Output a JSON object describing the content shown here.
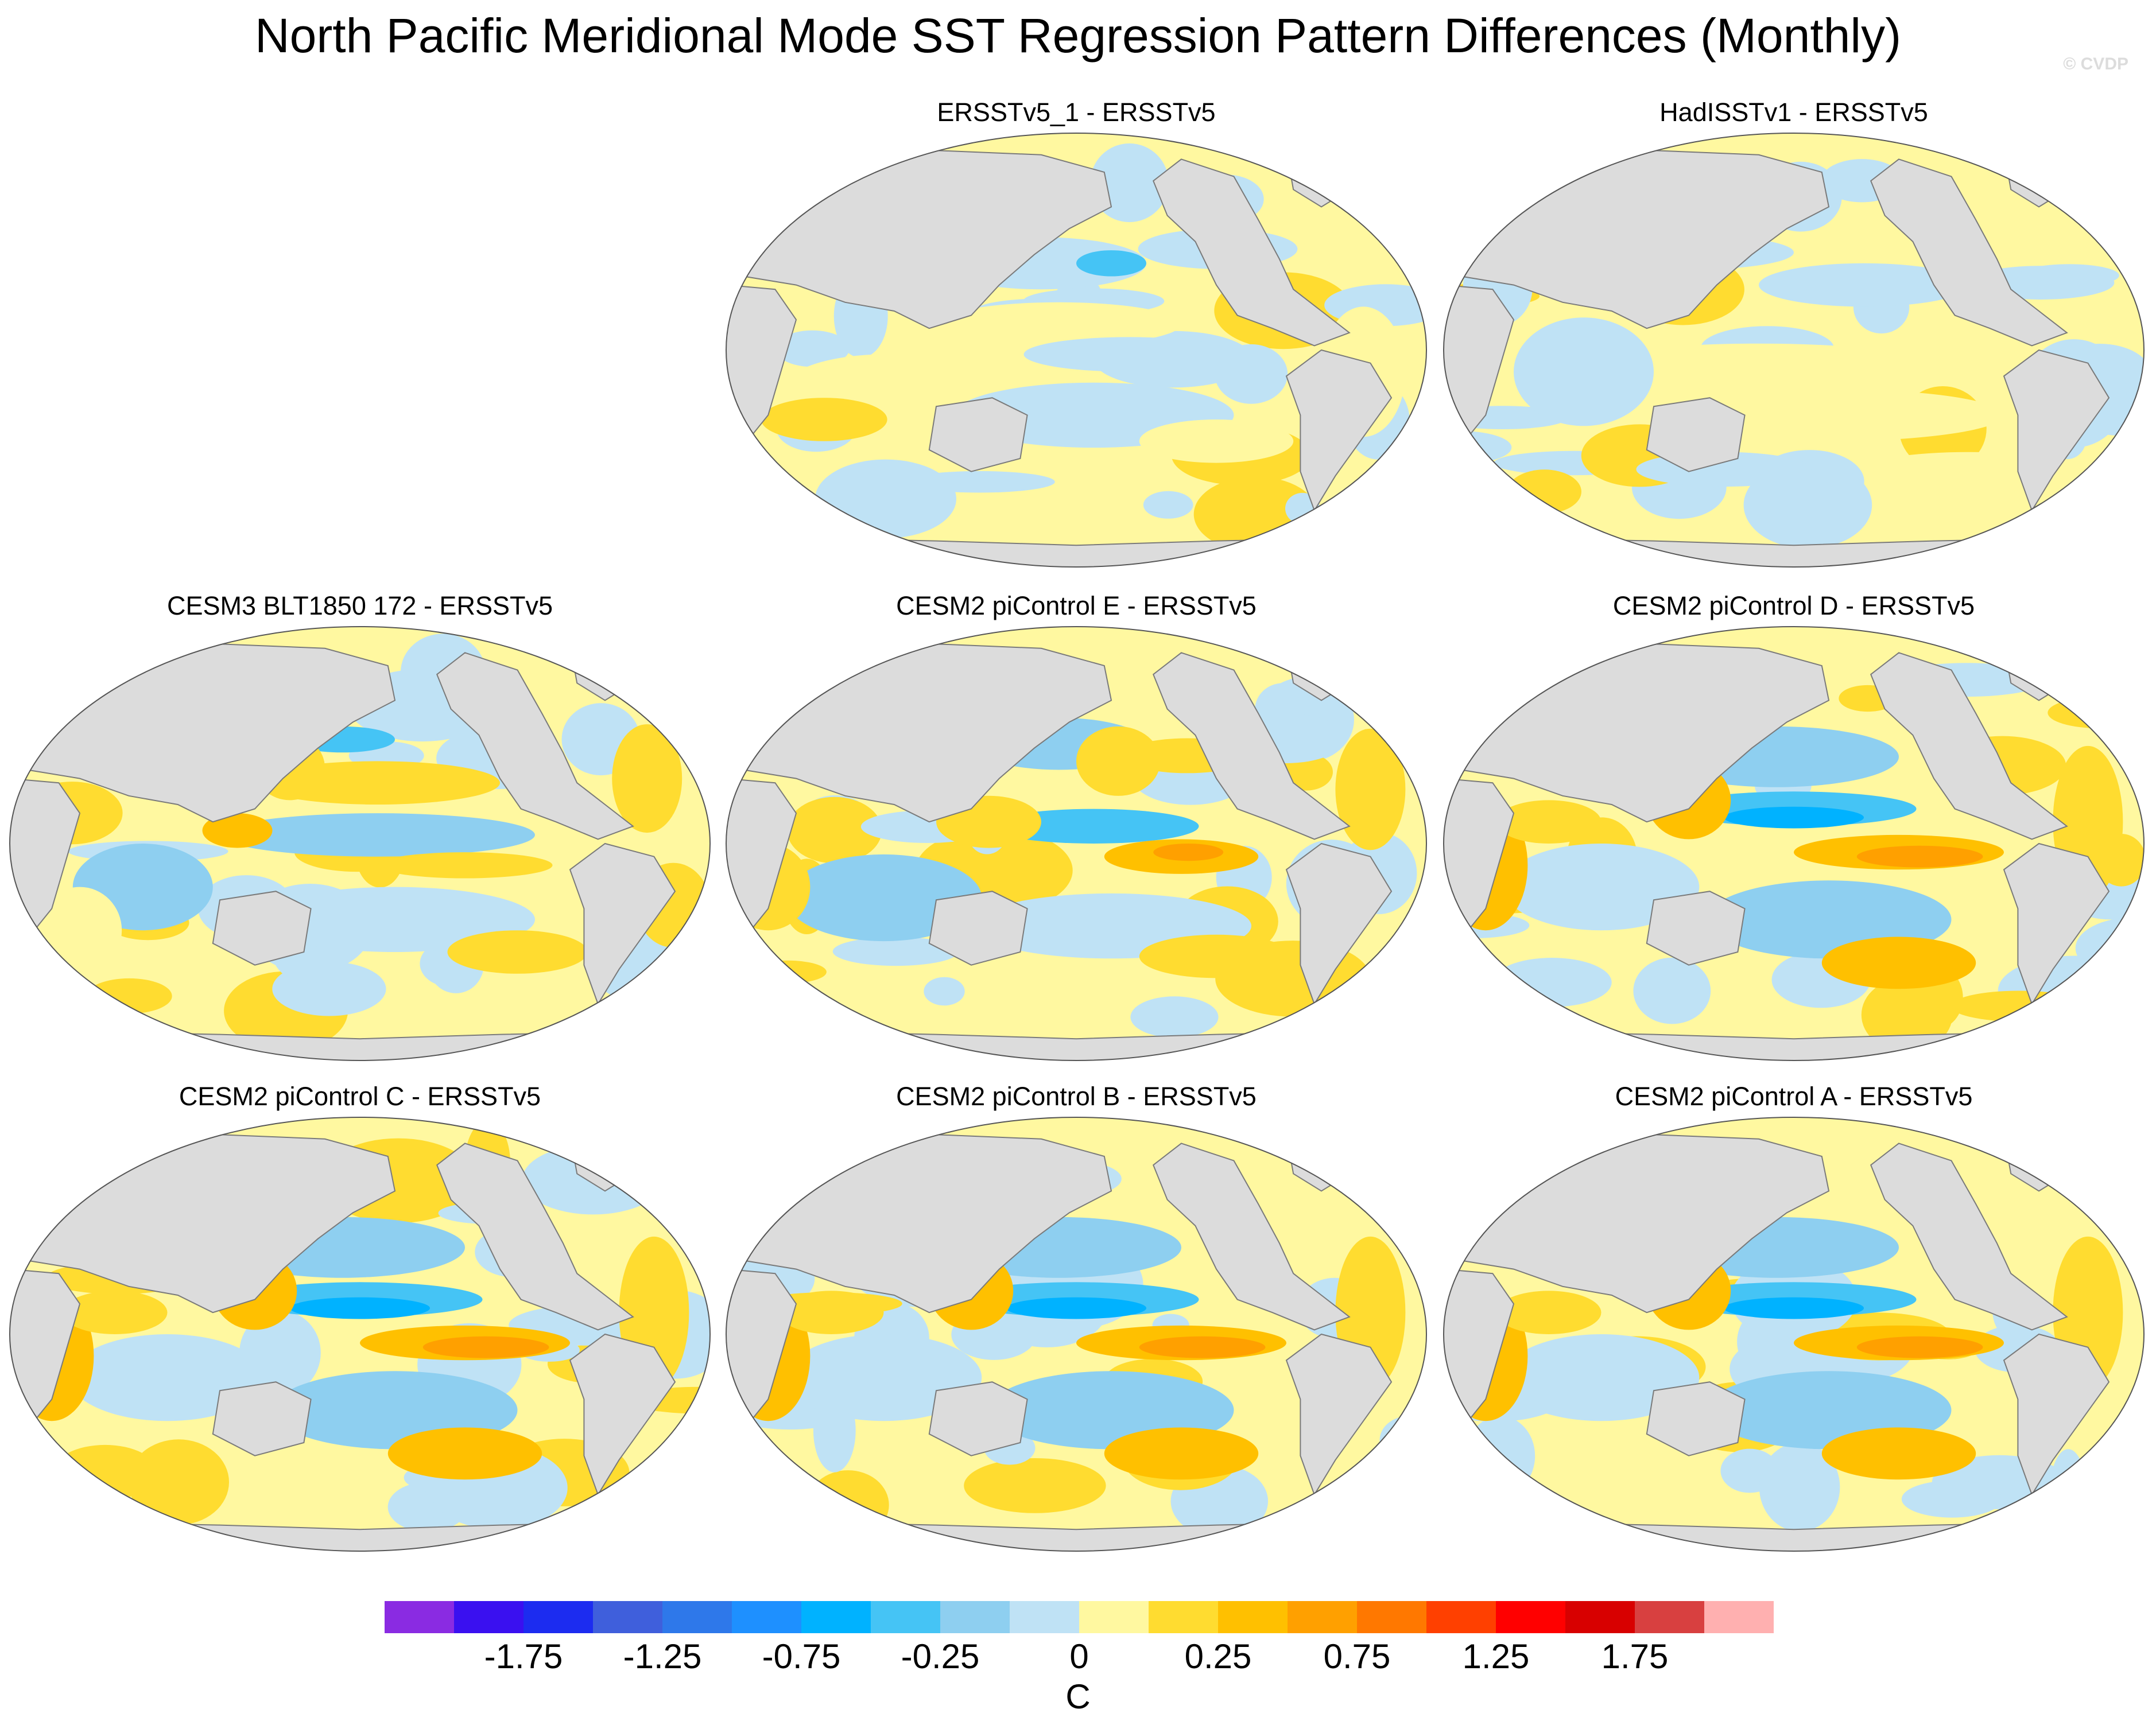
{
  "figure": {
    "title": "North Pacific Meridional Mode SST Regression Pattern Differences (Monthly)",
    "watermark": "© CVDP"
  },
  "panels": [
    {
      "title": "ERSSTv5_1 - ERSSTv5",
      "pattern": "obs_small"
    },
    {
      "title": "HadISSTv1 - ERSSTv5",
      "pattern": "obs_noisy"
    },
    {
      "title": "CESM3 BLT1850 172 - ERSSTv5",
      "pattern": "cesm3"
    },
    {
      "title": "CESM2 piControl E - ERSSTv5",
      "pattern": "cesm2_moderate"
    },
    {
      "title": "CESM2 piControl D - ERSSTv5",
      "pattern": "cesm2_strong"
    },
    {
      "title": "CESM2 piControl C - ERSSTv5",
      "pattern": "cesm2_strong"
    },
    {
      "title": "CESM2 piControl B - ERSSTv5",
      "pattern": "cesm2_strong"
    },
    {
      "title": "CESM2 piControl A - ERSSTv5",
      "pattern": "cesm2_strong"
    }
  ],
  "colorbar": {
    "unit": "C",
    "colors": [
      "#8a2be2",
      "#3a10f0",
      "#1c2cf0",
      "#3f5fdc",
      "#2e78ea",
      "#1e90ff",
      "#00b2ff",
      "#45c4f5",
      "#8ecff0",
      "#bfe2f5",
      "#fff8a0",
      "#ffdc30",
      "#ffc000",
      "#ffa000",
      "#ff7800",
      "#ff4000",
      "#ff0000",
      "#d80000",
      "#d84040",
      "#ffb0b0"
    ],
    "tick_labels": [
      "-1.75",
      "-1.25",
      "-0.75",
      "-0.25",
      "0",
      "0.25",
      "0.75",
      "1.25",
      "1.75"
    ]
  },
  "chart_data": {
    "type": "heatmap",
    "title": "North Pacific Meridional Mode SST Regression Pattern Differences (Monthly)",
    "projection": "Robinson, Pacific-centred",
    "value_unit": "C",
    "contour_levels": [
      -2.0,
      -1.75,
      -1.5,
      -1.25,
      -1.0,
      -0.75,
      -0.5,
      -0.25,
      -0.1,
      0,
      0.1,
      0.25,
      0.5,
      0.75,
      1.0,
      1.25,
      1.5,
      1.75,
      2.0
    ],
    "color_range": [
      -2.25,
      2.25
    ],
    "panels": [
      "ERSSTv5_1 - ERSSTv5",
      "HadISSTv1 - ERSSTv5",
      "CESM3 BLT1850 172 - ERSSTv5",
      "CESM2 piControl E - ERSSTv5",
      "CESM2 piControl D - ERSSTv5",
      "CESM2 piControl C - ERSSTv5",
      "CESM2 piControl B - ERSSTv5",
      "CESM2 piControl A - ERSSTv5"
    ]
  }
}
